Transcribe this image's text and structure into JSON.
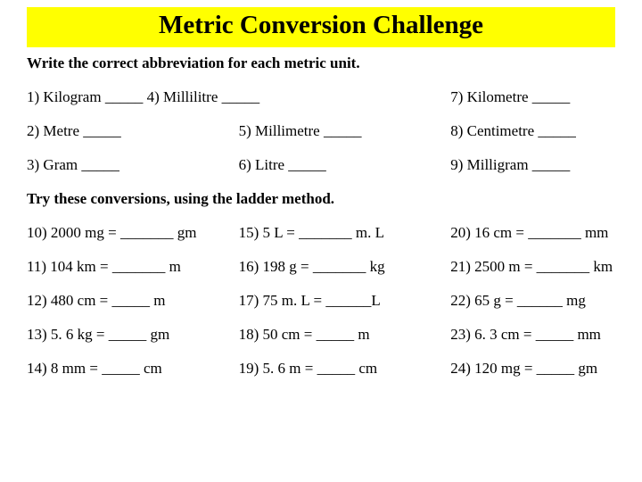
{
  "title": "Metric Conversion Challenge",
  "instruction1": "Write the correct abbreviation for each metric unit.",
  "instruction2": "Try these conversions, using the ladder method.",
  "section1": {
    "row1": {
      "c1": "1) Kilogram _____ 4) Millilitre _____",
      "c3": "7) Kilometre _____"
    },
    "row2": {
      "c1": "2) Metre _____",
      "c2": "5) Millimetre _____",
      "c3": "8) Centimetre _____"
    },
    "row3": {
      "c1": "3) Gram _____",
      "c2": "6) Litre _____",
      "c3": "9) Milligram _____"
    }
  },
  "section2": {
    "row1": {
      "c1": "10) 2000 mg = _______ gm",
      "c2": "15) 5 L = _______ m. L",
      "c3": "20) 16 cm = _______ mm"
    },
    "row2": {
      "c1": "11) 104 km = _______ m",
      "c2": "16) 198 g = _______ kg",
      "c3": "21) 2500 m = _______ km"
    },
    "row3": {
      "c1": "12) 480 cm = _____ m",
      "c2": "17) 75 m. L = ______L",
      "c3": "22) 65 g = ______ mg"
    },
    "row4": {
      "c1": "13) 5. 6 kg = _____ gm",
      "c2": "18) 50 cm = _____ m",
      "c3": "23) 6. 3 cm = _____ mm"
    },
    "row5": {
      "c1": "14) 8 mm = _____ cm",
      "c2": "19) 5. 6 m = _____ cm",
      "c3": "24) 120 mg = _____ gm"
    }
  },
  "styles": {
    "title_bg": "#ffff00",
    "title_fontsize": 29,
    "body_fontsize": 17,
    "text_color": "#000000",
    "page_bg": "#ffffff"
  }
}
